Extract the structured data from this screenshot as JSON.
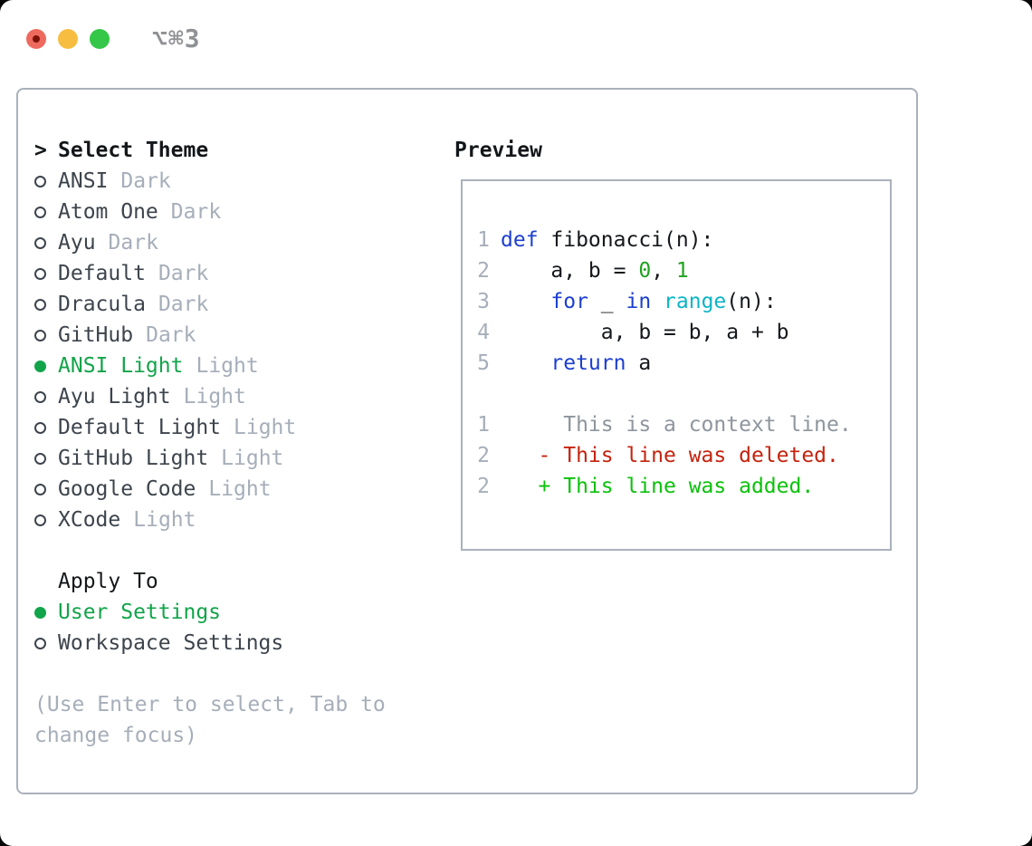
{
  "window": {
    "title": "⌥⌘3",
    "traffic_lights": [
      "close",
      "minimize",
      "zoom"
    ]
  },
  "colors": {
    "panel_border": "#aab1bc",
    "selected_green": "#12a44a",
    "keyword_blue": "#1c3fd1",
    "function_cyan": "#0cb4c6",
    "number_green": "#20a320",
    "added_green": "#0bc20b",
    "deleted_red": "#c5230e",
    "muted_gray": "#a6aeb9",
    "text_dark": "#3d444c"
  },
  "theme_panel": {
    "header_prompt": ">",
    "header_label": "Select Theme",
    "themes": [
      {
        "name": "ANSI",
        "variant": "Dark",
        "selected": false
      },
      {
        "name": "Atom One",
        "variant": "Dark",
        "selected": false
      },
      {
        "name": "Ayu",
        "variant": "Dark",
        "selected": false
      },
      {
        "name": "Default",
        "variant": "Dark",
        "selected": false
      },
      {
        "name": "Dracula",
        "variant": "Dark",
        "selected": false
      },
      {
        "name": "GitHub",
        "variant": "Dark",
        "selected": false
      },
      {
        "name": "ANSI Light",
        "variant": "Light",
        "selected": true
      },
      {
        "name": "Ayu Light",
        "variant": "Light",
        "selected": false
      },
      {
        "name": "Default Light",
        "variant": "Light",
        "selected": false
      },
      {
        "name": "GitHub Light",
        "variant": "Light",
        "selected": false
      },
      {
        "name": "Google Code",
        "variant": "Light",
        "selected": false
      },
      {
        "name": "XCode",
        "variant": "Light",
        "selected": false
      }
    ],
    "apply_to_label": "Apply To",
    "apply_options": [
      {
        "label": "User Settings",
        "selected": true
      },
      {
        "label": "Workspace Settings",
        "selected": false
      }
    ],
    "help_text": "(Use Enter to select, Tab to change focus)"
  },
  "preview": {
    "label": "Preview",
    "code_lines": [
      {
        "n": "1",
        "tokens": [
          [
            "kw",
            "def"
          ],
          [
            "def",
            " fibonacci(n):"
          ]
        ]
      },
      {
        "n": "2",
        "tokens": [
          [
            "def",
            "    a, b = "
          ],
          [
            "num",
            "0"
          ],
          [
            "def",
            ", "
          ],
          [
            "num",
            "1"
          ]
        ]
      },
      {
        "n": "3",
        "tokens": [
          [
            "def",
            "    "
          ],
          [
            "kw",
            "for"
          ],
          [
            "def",
            " _ "
          ],
          [
            "kw",
            "in"
          ],
          [
            "def",
            " "
          ],
          [
            "fn",
            "range"
          ],
          [
            "def",
            "(n):"
          ]
        ]
      },
      {
        "n": "4",
        "tokens": [
          [
            "def",
            "        a, b = b, a + b"
          ]
        ]
      },
      {
        "n": "5",
        "tokens": [
          [
            "def",
            "    "
          ],
          [
            "kw",
            "return"
          ],
          [
            "def",
            " a"
          ]
        ]
      }
    ],
    "diff_lines": [
      {
        "n": "1",
        "kind": "ctx",
        "text": "     This is a context line."
      },
      {
        "n": "2",
        "kind": "del",
        "text": "   - This line was deleted."
      },
      {
        "n": "2",
        "kind": "add",
        "text": "   + This line was added."
      }
    ]
  }
}
